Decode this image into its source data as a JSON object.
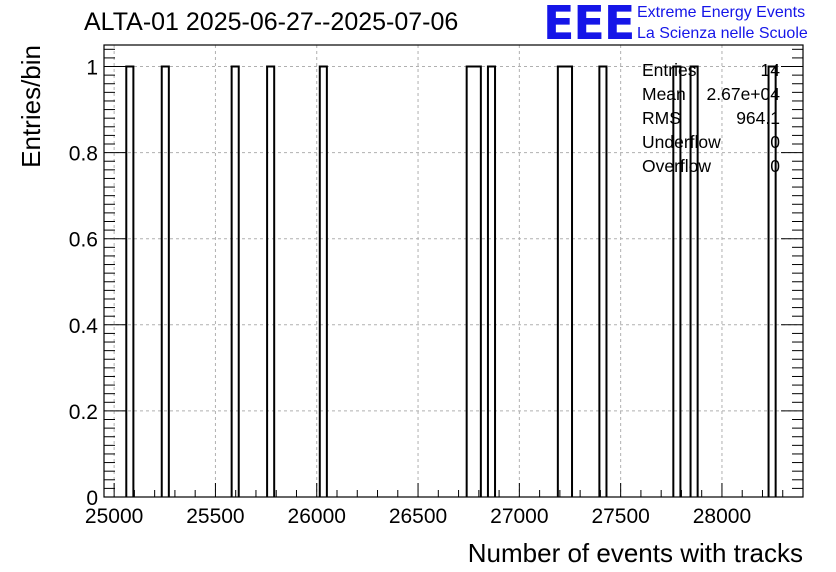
{
  "title": "ALTA-01 2025-06-27--2025-07-06",
  "logo": {
    "mark": "EEE",
    "line1": "Extreme Energy Events",
    "line2": "La Scienza nelle Scuole",
    "color": "#1515e8"
  },
  "stats": [
    {
      "name": "Entries",
      "value": "14"
    },
    {
      "name": "Mean",
      "value": "2.67e+04"
    },
    {
      "name": "RMS",
      "value": "964.1"
    },
    {
      "name": "Underflow",
      "value": "0"
    },
    {
      "name": "Overflow",
      "value": "0"
    }
  ],
  "chart_data": {
    "type": "bar",
    "xlabel": "Number of events with tracks",
    "ylabel": "Entries/bin",
    "xlim": [
      24950,
      28400
    ],
    "ylim": [
      0,
      1.05
    ],
    "grid": true,
    "x_ticks": [
      25000,
      25500,
      26000,
      26500,
      27000,
      27500,
      28000
    ],
    "y_ticks": [
      0,
      0.2,
      0.4,
      0.6,
      0.8,
      1
    ],
    "y_tick_labels": [
      "0",
      "0.2",
      "0.4",
      "0.6",
      "0.8",
      "1"
    ],
    "bins": [
      {
        "lo": 25060,
        "hi": 25095,
        "value": 1
      },
      {
        "lo": 25235,
        "hi": 25270,
        "value": 1
      },
      {
        "lo": 25580,
        "hi": 25615,
        "value": 1
      },
      {
        "lo": 25755,
        "hi": 25790,
        "value": 1
      },
      {
        "lo": 26015,
        "hi": 26050,
        "value": 1
      },
      {
        "lo": 26740,
        "hi": 26810,
        "value": 1
      },
      {
        "lo": 26845,
        "hi": 26880,
        "value": 1
      },
      {
        "lo": 27190,
        "hi": 27260,
        "value": 1
      },
      {
        "lo": 27395,
        "hi": 27430,
        "value": 1
      },
      {
        "lo": 27760,
        "hi": 27795,
        "value": 1
      },
      {
        "lo": 27845,
        "hi": 27880,
        "value": 1
      },
      {
        "lo": 28230,
        "hi": 28265,
        "value": 1
      }
    ]
  }
}
